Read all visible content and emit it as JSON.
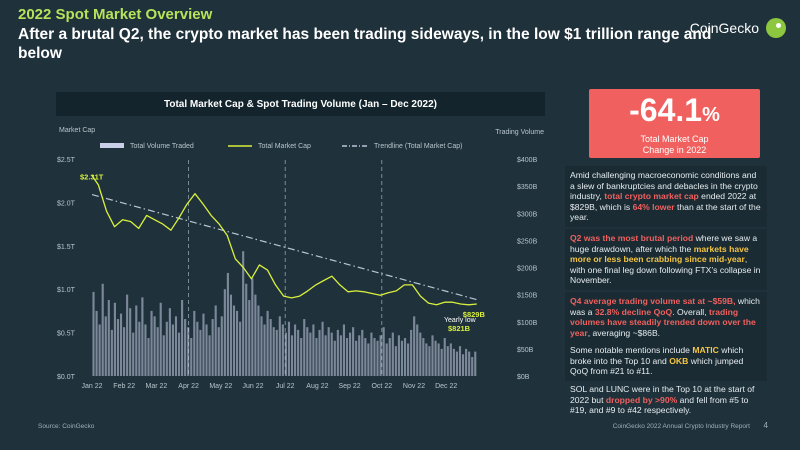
{
  "header": {
    "title": "2022 Spot Market Overview",
    "subtitle": "After a brutal Q2, the crypto market has been trading sideways, in the low $1 trillion range and below",
    "brand": "CoinGecko"
  },
  "stat": {
    "value": "-64.1",
    "unit": "%",
    "label_line1": "Total Market Cap",
    "label_line2": "Change in 2022"
  },
  "notes": [
    {
      "segments": [
        {
          "t": "Amid challenging macroeconomic conditions and a slew of bankruptcies and debacles in the crypto industry, ",
          "s": ""
        },
        {
          "t": "total crypto market cap",
          "s": "red"
        },
        {
          "t": " ended 2022 at $829B, which is ",
          "s": ""
        },
        {
          "t": "64% lower",
          "s": "red"
        },
        {
          "t": " than at the start of the year.",
          "s": ""
        }
      ]
    },
    {
      "segments": [
        {
          "t": "Q2 was the most brutal period",
          "s": "red"
        },
        {
          "t": " where we saw a huge drawdown, after which the ",
          "s": ""
        },
        {
          "t": "markets have more or less been crabbing since mid-year",
          "s": "yel"
        },
        {
          "t": ", with one final leg down following FTX’s collapse in November.",
          "s": ""
        }
      ]
    },
    {
      "segments": [
        {
          "t": "Q4 average trading volume sat at ~$59B,",
          "s": "red"
        },
        {
          "t": " which was a ",
          "s": ""
        },
        {
          "t": "32.8% decline QoQ",
          "s": "red"
        },
        {
          "t": ". Overall, ",
          "s": ""
        },
        {
          "t": "trading volumes have steadily trended down over the year",
          "s": "red"
        },
        {
          "t": ", averaging ~$86B.",
          "s": ""
        }
      ]
    },
    {
      "segments": [
        {
          "t": "Some notable mentions include ",
          "s": ""
        },
        {
          "t": "MATIC",
          "s": "yel"
        },
        {
          "t": " which broke into the Top 10 and ",
          "s": ""
        },
        {
          "t": "OKB",
          "s": "yel"
        },
        {
          "t": " which jumped QoQ from #21 to #11.",
          "s": ""
        }
      ]
    },
    {
      "segments": [
        {
          "t": "SOL and LUNC were in the Top 10 at the start of 2022 but ",
          "s": ""
        },
        {
          "t": "dropped by >90%",
          "s": "red"
        },
        {
          "t": " and fell from #5 to #19, and #9 to #42 respectively.",
          "s": ""
        }
      ]
    }
  ],
  "footer": {
    "source": "Source: CoinGecko",
    "report": "CoinGecko 2022 Annual Crypto Industry Report",
    "page": "4"
  },
  "colors": {
    "market_cap": "#d8f03c",
    "volume": "#c9cfe8",
    "trendline": "#b9c6d6",
    "highlight_red": "#f0605e",
    "highlight_yellow": "#f5c542",
    "title_green": "#b6e35a"
  },
  "chart_data": {
    "type": "line",
    "title": "Total Market Cap & Spot Trading Volume (Jan – Dec 2022)",
    "ylabel_left": "Market Cap",
    "ylabel_right": "Trading Volume",
    "left_ticks": [
      "$0.0T",
      "$0.5T",
      "$1.0T",
      "$1.5T",
      "$2.0T",
      "$2.5T"
    ],
    "left_ylim": [
      0,
      2.5
    ],
    "right_ticks": [
      "$0B",
      "$50B",
      "$100B",
      "$150B",
      "$200B",
      "$250B",
      "$300B",
      "$350B",
      "$400B"
    ],
    "right_ylim": [
      0,
      400
    ],
    "x_ticks": [
      "Jan 22",
      "Feb 22",
      "Mar 22",
      "Apr 22",
      "May 22",
      "Jun 22",
      "Jul 22",
      "Aug 22",
      "Sep 22",
      "Oct 22",
      "Nov 22",
      "Dec 22"
    ],
    "quarter_lines": [
      "Apr 22",
      "Jul 22",
      "Oct 22"
    ],
    "legend": [
      "Total Volume Traded",
      "Total Market Cap",
      "Trendline (Total Market Cap)"
    ],
    "legend_position": "top",
    "grid": false,
    "annotations": {
      "start_label": "$2.31T",
      "end_label": "$829B",
      "low_caption": "Yearly low",
      "low_value": "$821B"
    },
    "series": [
      {
        "name": "Total Market Cap",
        "axis": "left",
        "unit": "T",
        "x": [
          0,
          0.2,
          0.45,
          0.7,
          0.95,
          1.2,
          1.45,
          1.7,
          1.95,
          2.2,
          2.45,
          2.7,
          2.95,
          3.2,
          3.45,
          3.7,
          3.95,
          4.2,
          4.45,
          4.7,
          4.95,
          5.2,
          5.45,
          5.7,
          5.95,
          6.2,
          6.45,
          6.7,
          6.95,
          7.2,
          7.45,
          7.7,
          7.95,
          8.2,
          8.45,
          8.7,
          8.95,
          9.2,
          9.45,
          9.7,
          9.95,
          10.2,
          10.45,
          10.7,
          10.95,
          11.2,
          11.45,
          11.7,
          11.95
        ],
        "values": [
          2.31,
          2.2,
          1.9,
          1.72,
          1.8,
          1.78,
          1.7,
          1.85,
          1.8,
          1.75,
          1.68,
          1.82,
          1.98,
          2.1,
          1.98,
          1.85,
          1.75,
          1.62,
          1.35,
          1.25,
          1.12,
          1.28,
          1.22,
          1.05,
          0.92,
          0.9,
          0.92,
          0.98,
          1.05,
          1.1,
          1.15,
          1.05,
          0.97,
          0.98,
          0.97,
          0.95,
          0.93,
          0.96,
          0.98,
          1.05,
          1.05,
          0.92,
          0.84,
          0.82,
          0.85,
          0.85,
          0.83,
          0.82,
          0.829
        ]
      },
      {
        "name": "Trendline (Total Market Cap)",
        "axis": "left",
        "unit": "T",
        "x": [
          0,
          11.95
        ],
        "values": [
          2.09,
          0.88
        ]
      },
      {
        "name": "Total Volume Traded",
        "axis": "right",
        "unit": "B",
        "x_range": [
          0,
          11.95
        ],
        "values": [
          155,
          120,
          95,
          170,
          110,
          140,
          85,
          135,
          105,
          115,
          90,
          150,
          125,
          80,
          130,
          100,
          145,
          95,
          70,
          120,
          110,
          90,
          135,
          75,
          100,
          125,
          95,
          110,
          80,
          140,
          105,
          90,
          70,
          120,
          100,
          85,
          115,
          95,
          75,
          105,
          130,
          90,
          110,
          160,
          190,
          150,
          130,
          120,
          100,
          230,
          170,
          140,
          180,
          150,
          130,
          110,
          95,
          120,
          105,
          90,
          85,
          110,
          95,
          80,
          100,
          75,
          95,
          85,
          70,
          105,
          90,
          80,
          95,
          70,
          85,
          100,
          75,
          90,
          80,
          65,
          85,
          75,
          95,
          70,
          80,
          90,
          65,
          75,
          85,
          70,
          60,
          80,
          70,
          65,
          75,
          90,
          60,
          70,
          80,
          55,
          75,
          65,
          70,
          60,
          85,
          110,
          95,
          80,
          70,
          60,
          55,
          75,
          65,
          60,
          50,
          70,
          55,
          60,
          50,
          45,
          55,
          40,
          50,
          45,
          35,
          45
        ]
      }
    ]
  }
}
